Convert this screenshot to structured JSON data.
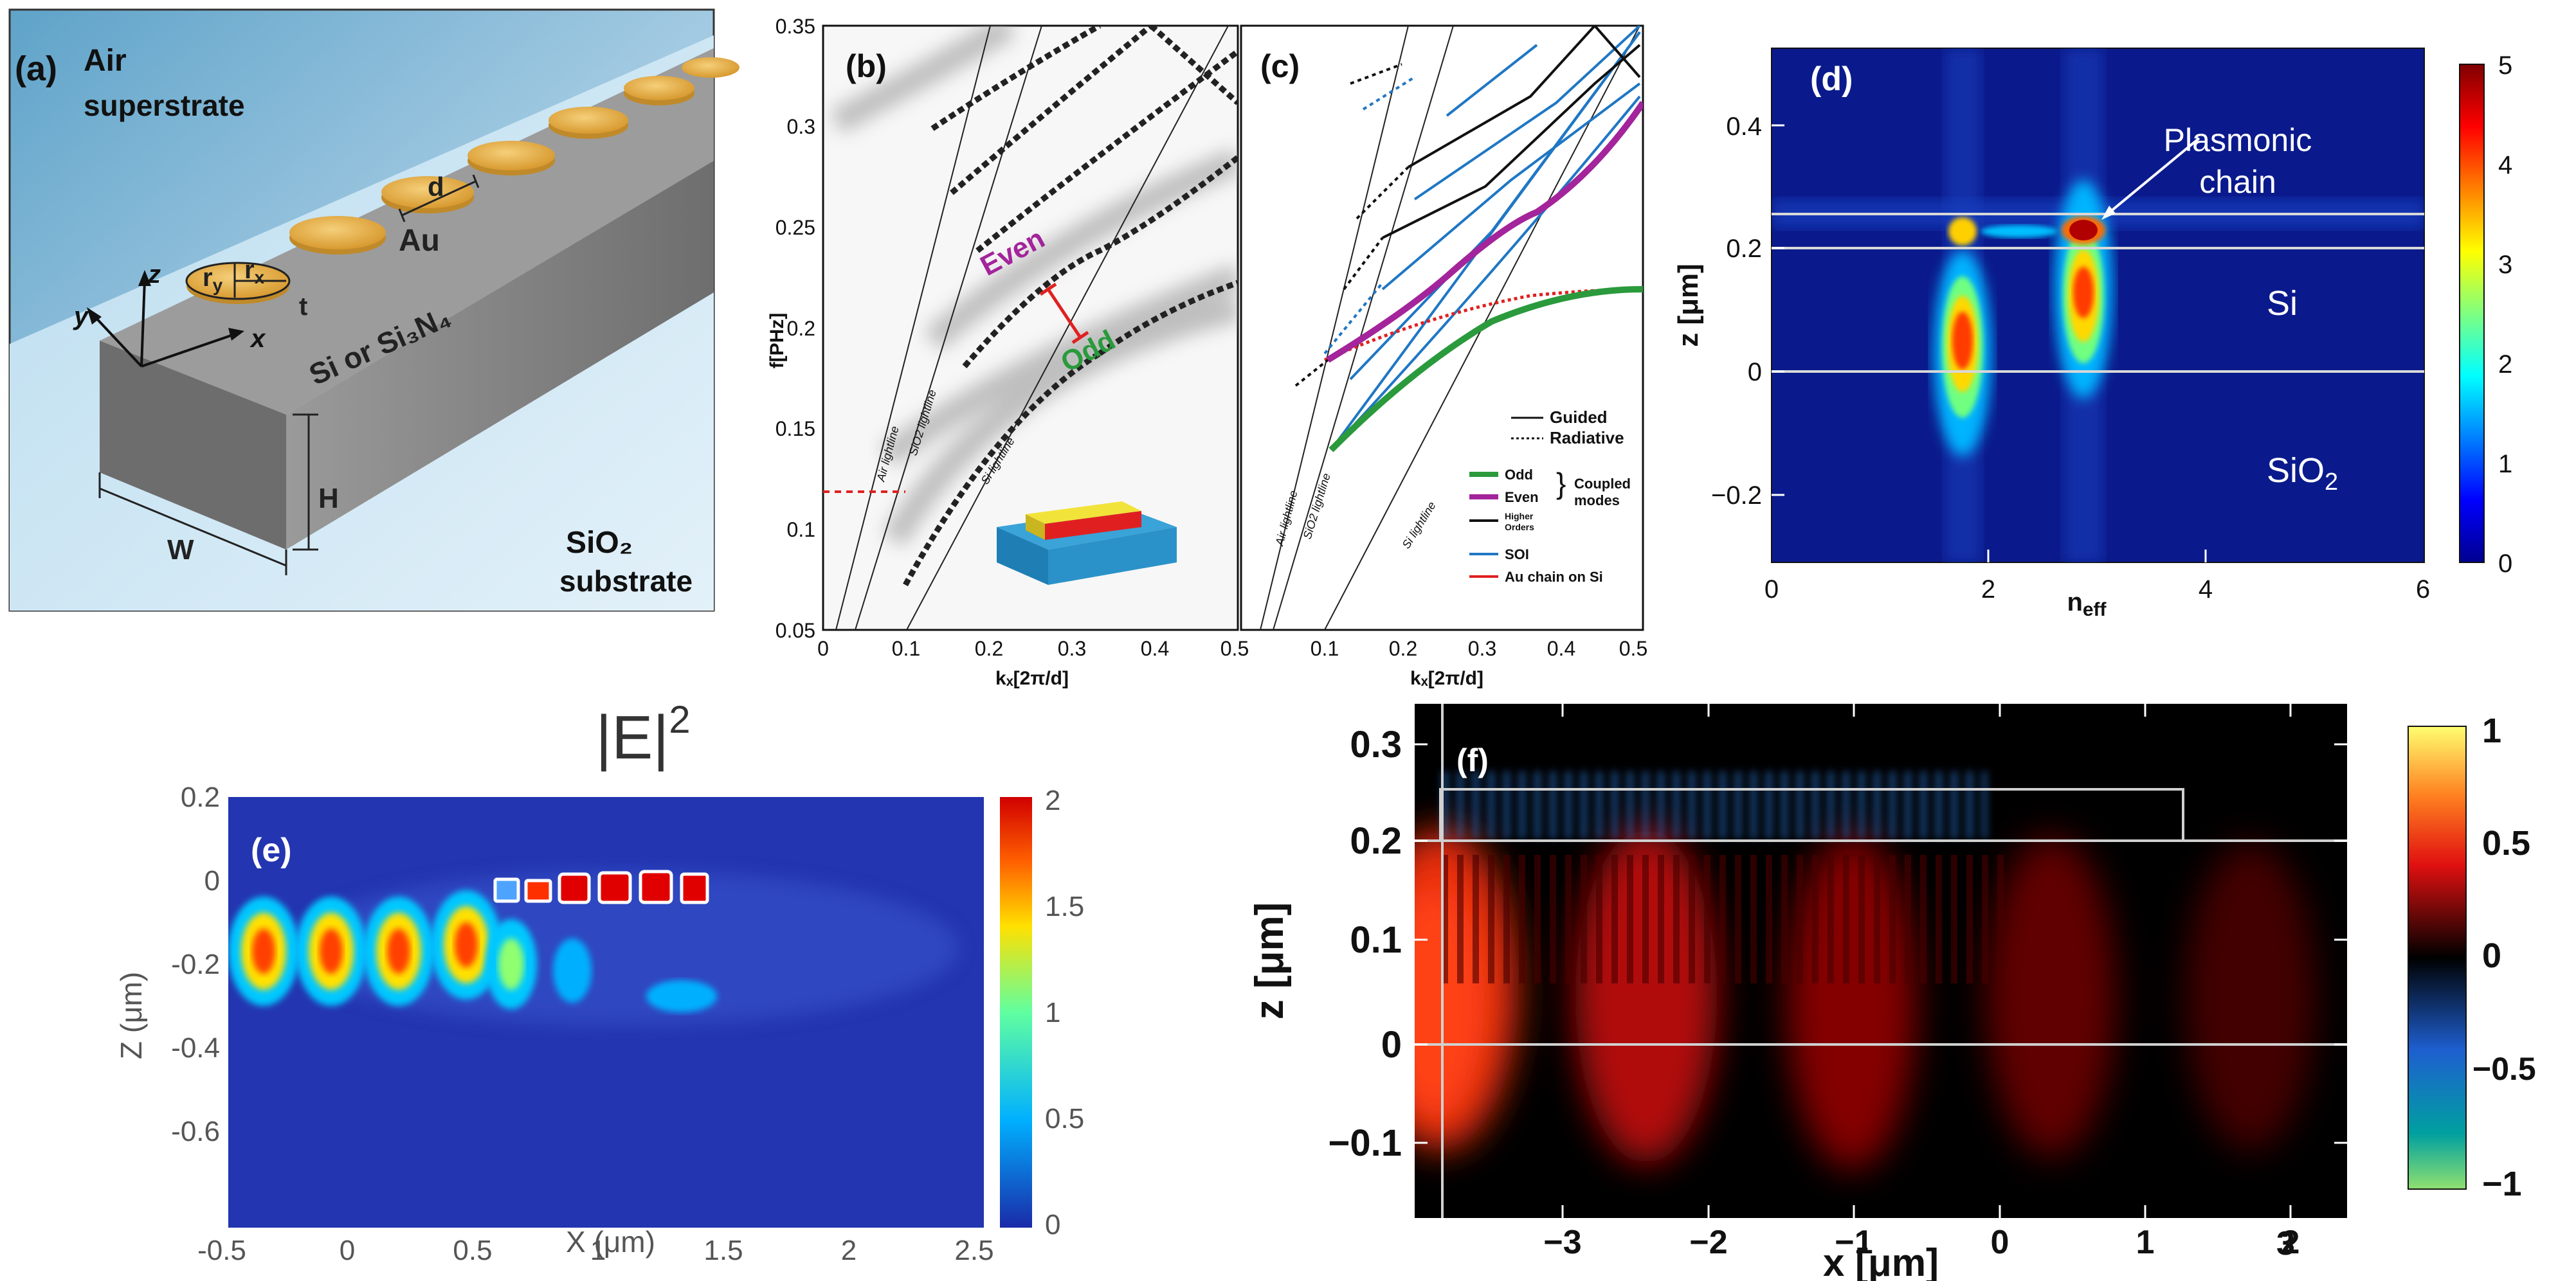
{
  "panel_a": {
    "tag": "(a)",
    "air_1": "Air",
    "air_2": "superstrate",
    "d_label": "d",
    "au_label": "Au",
    "z_axis": "z",
    "y_axis": "y",
    "x_axis": "x",
    "ry": "r",
    "ry_sub": "y",
    "rx": "r",
    "rx_sub": "x",
    "t_label": "t",
    "waveguide_material": "Si or Si₃N₄",
    "w_label": "W",
    "h_label": "H",
    "sio2_1": "SiO₂",
    "sio2_2": "substrate",
    "colors": {
      "sky": "#a8cde4",
      "substrate": "#cfe6f4",
      "gold": "#e8b04a",
      "guide": "#8c8c8c"
    }
  },
  "panel_b": {
    "tag": "(b)",
    "ylabel": "f[PHz]",
    "xlabel": "kₓ[2π/d]",
    "yticks": [
      "0.35",
      "0.3",
      "0.25",
      "0.2",
      "0.15",
      "0.1",
      "0.05"
    ],
    "xticks": [
      "0",
      "0.1",
      "0.2",
      "0.3",
      "0.4",
      "0.5"
    ],
    "even_label": "Even",
    "odd_label": "Odd",
    "air_lightline": "Air lightline",
    "sio2_lightline": "SiO2 lightline",
    "si_lightline": "Si lightline",
    "colors": {
      "even": "#a3249b",
      "odd": "#2a9a3c",
      "marker": "#e02020"
    }
  },
  "panel_c": {
    "tag": "(c)",
    "xlabel": "kₓ[2π/d]",
    "xticks": [
      "0.1",
      "0.2",
      "0.3",
      "0.4",
      "0.5"
    ],
    "air_lightline": "Air lightline",
    "sio2_lightline": "SiO2 lightline",
    "si_lightline": "Si lightline",
    "legend": {
      "guided": "Guided",
      "radiative": "Radiative",
      "odd": "Odd",
      "even": "Even",
      "higher_1": "Higher",
      "higher_2": "Orders",
      "coupled_1": "Coupled",
      "coupled_2": "modes",
      "soi": "SOI",
      "au_chain": "Au chain on Si"
    },
    "colors": {
      "odd": "#2a9a3c",
      "even": "#a3249b",
      "soi": "#1f77c4",
      "au": "#e02020"
    }
  },
  "panel_d": {
    "tag": "(d)",
    "ylabel": "z [μm]",
    "xlabel": "n",
    "xlabel_sub": "eff",
    "yticks": [
      "0.4",
      "0.2",
      "0",
      "−0.2"
    ],
    "xticks": [
      "0",
      "2",
      "4",
      "6"
    ],
    "cbar_ticks": [
      "5",
      "4",
      "3",
      "2",
      "1",
      "0"
    ],
    "plasmonic_1": "Plasmonic",
    "plasmonic_2": "chain",
    "si_label": "Si",
    "sio2_label": "SiO",
    "sio2_sub": "2"
  },
  "panel_e": {
    "title": "|E|",
    "title_sup": "2",
    "tag": "(e)",
    "ylabel": "Z (μm)",
    "xlabel": "X (μm)",
    "yticks": [
      "0.2",
      "0",
      "-0.2",
      "-0.4",
      "-0.6"
    ],
    "xticks": [
      "-0.5",
      "0",
      "0.5",
      "1",
      "1.5",
      "2",
      "2.5"
    ],
    "cbar_ticks": [
      "2",
      "1.5",
      "1",
      "0.5",
      "0"
    ]
  },
  "panel_f": {
    "tag": "(f)",
    "ylabel": "z [μm]",
    "xlabel": "x [μm]",
    "yticks": [
      "0.3",
      "0.2",
      "0.1",
      "0",
      "−0.1"
    ],
    "xticks": [
      "−3",
      "−2",
      "−1",
      "0",
      "1",
      "2",
      "3"
    ],
    "cbar_ticks": [
      "1",
      "0.5",
      "0",
      "−0.5",
      "−1"
    ]
  }
}
